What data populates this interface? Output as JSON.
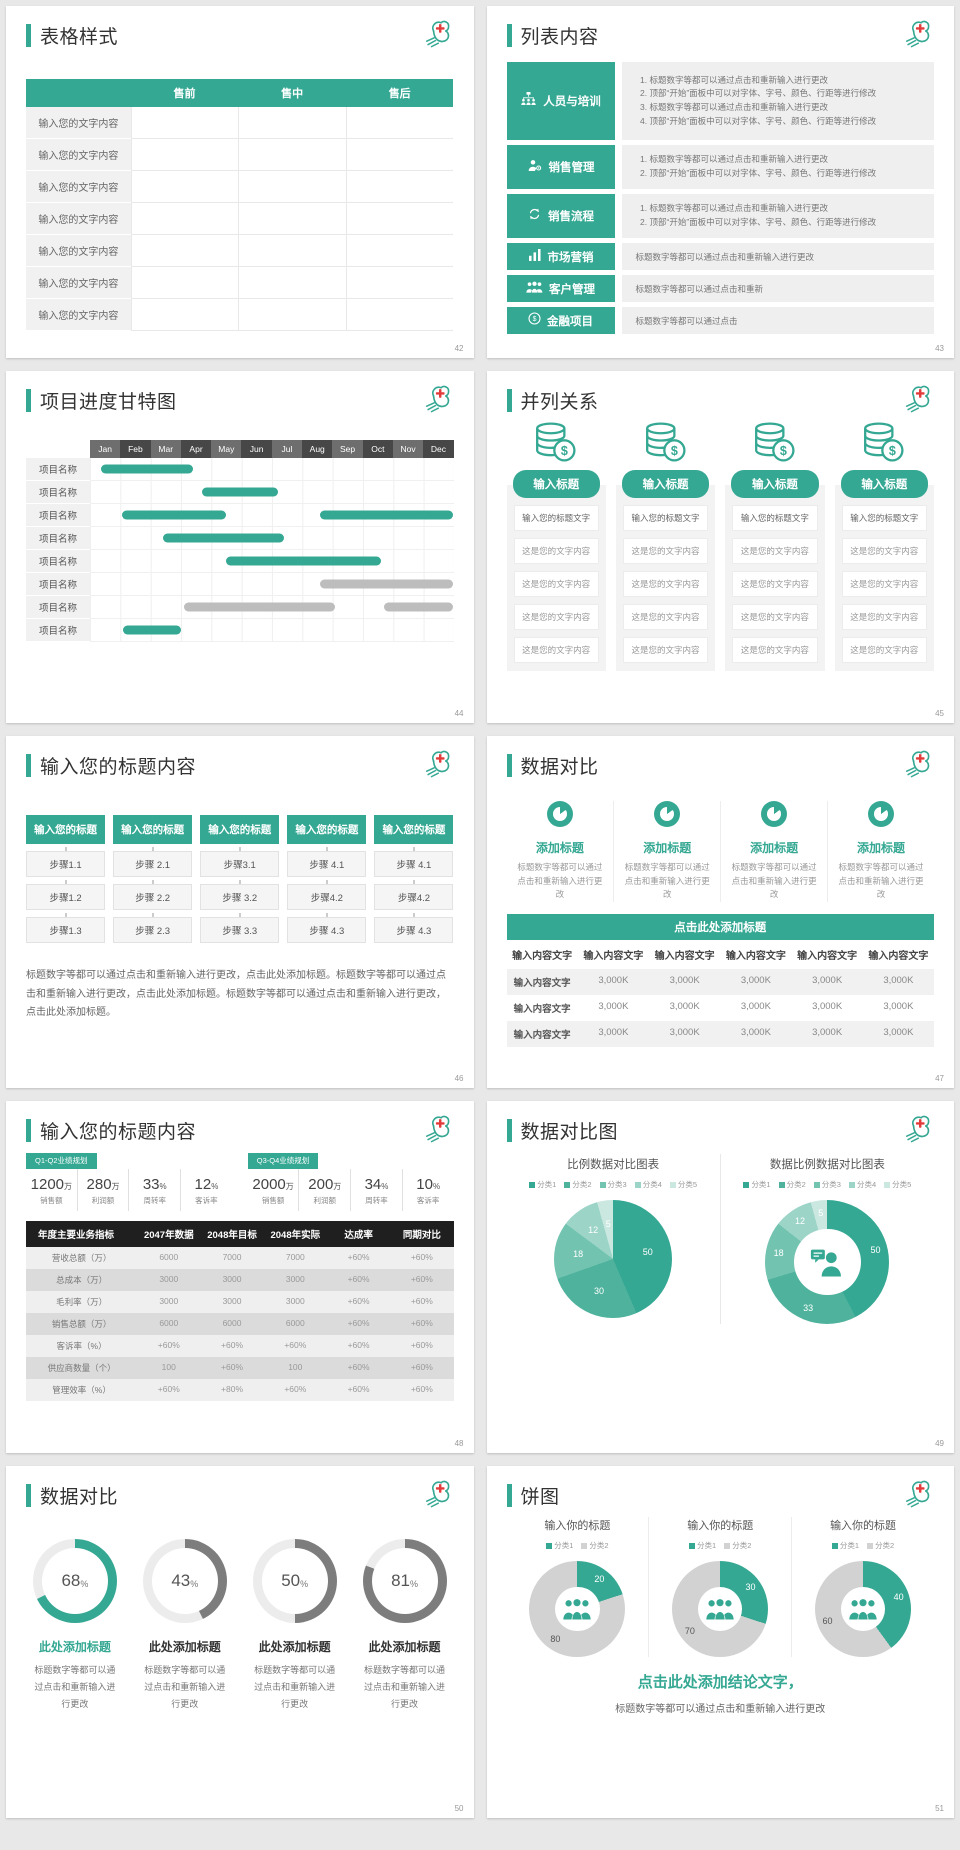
{
  "colors": {
    "accent": "#35a893",
    "gray_bar": "#bdbdbd",
    "dark_header": "#1f1f1f",
    "logo_red": "#e23c3c",
    "ring_gray": "#7d7d7d",
    "donut_gray": "#d2d2d2",
    "pie_shades": [
      "#35a893",
      "#4eb29c",
      "#73c3b1",
      "#9cd4c7",
      "#cbe8e0"
    ]
  },
  "slides": {
    "s42": {
      "title": "表格样式",
      "page": "42",
      "table": {
        "headers": [
          "",
          "售前",
          "售中",
          "售后"
        ],
        "row_label": "输入您的文字内容",
        "row_count": 7
      }
    },
    "s43": {
      "title": "列表内容",
      "page": "43",
      "items": [
        {
          "icon": "team-icon",
          "label": "人员与培训",
          "lines": [
            "标题数字等都可以通过点击和重新输入进行更改",
            "顶部“开始”面板中可以对字体、字号、颜色、行距等进行修改",
            "标题数字等都可以通过点击和重新输入进行更改",
            "顶部“开始”面板中可以对字体、字号、颜色、行距等进行修改"
          ]
        },
        {
          "icon": "sales-manager-icon",
          "label": "销售管理",
          "lines": [
            "标题数字等都可以通过点击和重新输入进行更改",
            "顶部“开始”面板中可以对字体、字号、颜色、行距等进行修改"
          ]
        },
        {
          "icon": "sales-process-icon",
          "label": "销售流程",
          "lines": [
            "标题数字等都可以通过点击和重新输入进行更改",
            "顶部“开始”面板中可以对字体、字号、颜色、行距等进行修改"
          ]
        },
        {
          "icon": "market-chart-icon",
          "label": "市场营销",
          "lines": [
            "标题数字等都可以通过点击和重新输入进行更改"
          ]
        },
        {
          "icon": "customers-icon",
          "label": "客户管理",
          "lines": [
            "标题数字等都可以通过点击和重新"
          ]
        },
        {
          "icon": "finance-icon",
          "label": "金融项目",
          "lines": [
            "标题数字等都可以通过点击"
          ]
        }
      ]
    },
    "s44": {
      "title": "项目进度甘特图",
      "page": "44",
      "months": [
        "Jan",
        "Feb",
        "Mar",
        "Apr",
        "May",
        "Jun",
        "Jul",
        "Aug",
        "Sep",
        "Oct",
        "Nov",
        "Dec"
      ],
      "row_label": "项目名称",
      "rows": [
        {
          "bars": [
            {
              "s": 0.35,
              "e": 3.4,
              "c": "teal"
            }
          ]
        },
        {
          "bars": [
            {
              "s": 3.7,
              "e": 6.2,
              "c": "teal"
            }
          ]
        },
        {
          "bars": [
            {
              "s": 1.05,
              "e": 4.5,
              "c": "teal"
            },
            {
              "s": 7.6,
              "e": 12,
              "c": "teal"
            }
          ]
        },
        {
          "bars": [
            {
              "s": 2.4,
              "e": 6.4,
              "c": "teal"
            }
          ]
        },
        {
          "bars": [
            {
              "s": 4.5,
              "e": 9.6,
              "c": "teal"
            }
          ]
        },
        {
          "bars": [
            {
              "s": 7.6,
              "e": 12,
              "c": "gray"
            }
          ]
        },
        {
          "bars": [
            {
              "s": 3.1,
              "e": 8.1,
              "c": "gray"
            },
            {
              "s": 9.7,
              "e": 12,
              "c": "gray"
            }
          ]
        },
        {
          "bars": [
            {
              "s": 1.1,
              "e": 3,
              "c": "teal"
            }
          ]
        }
      ]
    },
    "s45": {
      "title": "并列关系",
      "page": "45",
      "column_count": 4,
      "pill": "输入标题",
      "icon": "coins-icon",
      "first_box": "输入您的标题文字",
      "content_box": "这是您的文字内容",
      "content_rows": 4
    },
    "s46": {
      "title": "输入您的标题内容",
      "page": "46",
      "header": "输入您的标题",
      "columns": [
        [
          "步骤1.1",
          "步骤1.2",
          "步骤1.3"
        ],
        [
          "步骤 2.1",
          "步骤 2.2",
          "步骤 2.3"
        ],
        [
          "步骤3.1",
          "步骤 3.2",
          "步骤 3.3"
        ],
        [
          "步骤 4.1",
          "步骤4.2",
          "步骤 4.3"
        ],
        [
          "步骤 4.1",
          "步骤4.2",
          "步骤 4.3"
        ]
      ],
      "paragraph": "标题数字等都可以通过点击和重新输入进行更改，点击此处添加标题。标题数字等都可以通过点击和重新输入进行更改，点击此处添加标题。标题数字等都可以通过点击和重新输入进行更改，点击此处添加标题。"
    },
    "s47": {
      "title": "数据对比",
      "page": "47",
      "feature_count": 4,
      "feature_icon": "pie-badge-icon",
      "feature_title": "添加标题",
      "feature_desc": "标题数字等都可以通过点击和重新输入进行更改",
      "banner": "点击此处添加标题",
      "table": {
        "headers": [
          "输入内容文字",
          "输入内容文字",
          "输入内容文字",
          "输入内容文字",
          "输入内容文字",
          "输入内容文字"
        ],
        "rows": [
          [
            "输入内容文字",
            "3,000K",
            "3,000K",
            "3,000K",
            "3,000K",
            "3,000K"
          ],
          [
            "输入内容文字",
            "3,000K",
            "3,000K",
            "3,000K",
            "3,000K",
            "3,000K"
          ],
          [
            "输入内容文字",
            "3,000K",
            "3,000K",
            "3,000K",
            "3,000K",
            "3,000K"
          ]
        ]
      }
    },
    "s48": {
      "title": "输入您的标题内容",
      "page": "48",
      "groups": [
        {
          "tag": "Q1-Q2业绩规划",
          "stats": [
            {
              "value": "1200",
              "unit": "万",
              "label": "销售额"
            },
            {
              "value": "280",
              "unit": "万",
              "label": "利润额"
            },
            {
              "value": "33",
              "unit": "%",
              "label": "周转率"
            },
            {
              "value": "12",
              "unit": "%",
              "label": "客诉率"
            }
          ]
        },
        {
          "tag": "Q3-Q4业绩规划",
          "stats": [
            {
              "value": "2000",
              "unit": "万",
              "label": "销售额"
            },
            {
              "value": "200",
              "unit": "万",
              "label": "利润额"
            },
            {
              "value": "34",
              "unit": "%",
              "label": "周转率"
            },
            {
              "value": "10",
              "unit": "%",
              "label": "客诉率"
            }
          ]
        }
      ],
      "table": {
        "headers": [
          "年度主要业务指标",
          "2047年数据",
          "2048年目标",
          "2048年实际",
          "达成率",
          "同期对比"
        ],
        "rows": [
          [
            "营收总额（万）",
            "6000",
            "7000",
            "7000",
            "+60%",
            "+60%"
          ],
          [
            "总成本（万）",
            "3000",
            "3000",
            "3000",
            "+60%",
            "+60%"
          ],
          [
            "毛利率（万）",
            "3000",
            "3000",
            "3000",
            "+60%",
            "+60%"
          ],
          [
            "销售总额（万）",
            "6000",
            "6000",
            "6000",
            "+60%",
            "+60%"
          ],
          [
            "客诉率（%）",
            "+60%",
            "+60%",
            "+60%",
            "+60%",
            "+60%"
          ],
          [
            "供应商数量（个）",
            "100",
            "+60%",
            "100",
            "+60%",
            "+60%"
          ],
          [
            "管理效率（%）",
            "+60%",
            "+80%",
            "+60%",
            "+60%",
            "+60%"
          ]
        ]
      }
    },
    "s49": {
      "title": "数据对比图",
      "page": "49",
      "charts": [
        {
          "type": "pie",
          "donut": false,
          "title": "比例数据对比图表",
          "legend": [
            "分类1",
            "分类2",
            "分类3",
            "分类4",
            "分类5"
          ],
          "values": [
            50,
            30,
            18,
            12,
            5
          ]
        },
        {
          "type": "donut",
          "donut": true,
          "title": "数据比例数据对比图表",
          "legend": [
            "分类1",
            "分类2",
            "分类3",
            "分类4",
            "分类5"
          ],
          "values": [
            50,
            33,
            18,
            12,
            5
          ],
          "center_icon": "person-chat-icon"
        }
      ]
    },
    "s50": {
      "title": "数据对比",
      "page": "50",
      "rings": [
        {
          "percent": 68,
          "accent": true,
          "heading": "此处添加标题",
          "caption": "标题数字等都可以通过点击和重新输入进行更改"
        },
        {
          "percent": 43,
          "accent": false,
          "heading": "此处添加标题",
          "caption": "标题数字等都可以通过点击和重新输入进行更改"
        },
        {
          "percent": 50,
          "accent": false,
          "heading": "此处添加标题",
          "caption": "标题数字等都可以通过点击和重新输入进行更改"
        },
        {
          "percent": 81,
          "accent": false,
          "heading": "此处添加标题",
          "caption": "标题数字等都可以通过点击和重新输入进行更改"
        }
      ]
    },
    "s51": {
      "title": "饼图",
      "page": "51",
      "charts": [
        {
          "title": "输入你的标题",
          "legend": [
            "分类1",
            "分类2"
          ],
          "values": [
            20,
            80
          ],
          "center_icon": "people-icon"
        },
        {
          "title": "输入你的标题",
          "legend": [
            "分类1",
            "分类2"
          ],
          "values": [
            30,
            70
          ],
          "center_icon": "people-icon"
        },
        {
          "title": "输入你的标题",
          "legend": [
            "分类1",
            "分类2"
          ],
          "values": [
            40,
            60
          ],
          "center_icon": "people-icon"
        }
      ],
      "conclusion": "点击此处添加结论文字，",
      "conclusion_sub": "标题数字等都可以通过点击和重新输入进行更改"
    }
  },
  "chart_data": [
    {
      "type": "gantt",
      "slide": "44",
      "x_categories": [
        "Jan",
        "Feb",
        "Mar",
        "Apr",
        "May",
        "Jun",
        "Jul",
        "Aug",
        "Sep",
        "Oct",
        "Nov",
        "Dec"
      ],
      "rows_label": "项目名称",
      "bars_by_row": [
        [
          [
            0.35,
            3.4,
            "teal"
          ]
        ],
        [
          [
            3.7,
            6.2,
            "teal"
          ]
        ],
        [
          [
            1.05,
            4.5,
            "teal"
          ],
          [
            7.6,
            12,
            "teal"
          ]
        ],
        [
          [
            2.4,
            6.4,
            "teal"
          ]
        ],
        [
          [
            4.5,
            9.6,
            "teal"
          ]
        ],
        [
          [
            7.6,
            12,
            "gray"
          ]
        ],
        [
          [
            3.1,
            8.1,
            "gray"
          ],
          [
            9.7,
            12,
            "gray"
          ]
        ],
        [
          [
            1.1,
            3,
            "teal"
          ]
        ]
      ]
    },
    {
      "type": "pie",
      "slide": "49",
      "title": "比例数据对比图表",
      "labels": [
        "分类1",
        "分类2",
        "分类3",
        "分类4",
        "分类5"
      ],
      "values": [
        50,
        30,
        18,
        12,
        5
      ]
    },
    {
      "type": "pie",
      "slide": "49",
      "title": "数据比例数据对比图表",
      "labels": [
        "分类1",
        "分类2",
        "分类3",
        "分类4",
        "分类5"
      ],
      "values": [
        50,
        33,
        18,
        12,
        5
      ]
    },
    {
      "type": "pie",
      "slide": "50",
      "title": "数据对比",
      "values": [
        68,
        43,
        50,
        81
      ],
      "unit": "%"
    },
    {
      "type": "pie",
      "slide": "51",
      "title": "饼图",
      "labels": [
        "分类1",
        "分类2"
      ],
      "series": [
        {
          "name": "输入你的标题",
          "values": [
            20,
            80
          ]
        },
        {
          "name": "输入你的标题",
          "values": [
            30,
            70
          ]
        },
        {
          "name": "输入你的标题",
          "values": [
            40,
            60
          ]
        }
      ]
    }
  ]
}
